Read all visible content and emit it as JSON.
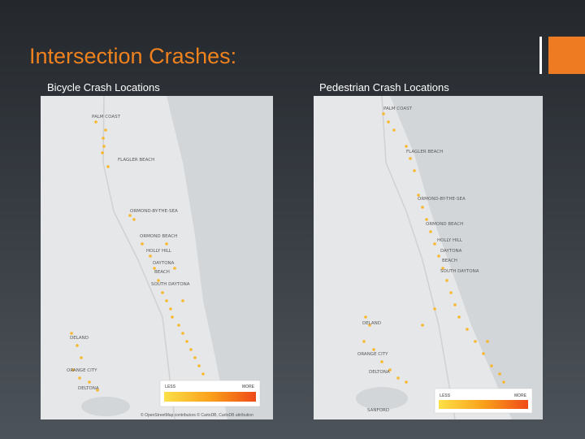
{
  "title": "Intersection Crashes:",
  "maps": [
    {
      "caption": "Bicycle Crash Locations",
      "places": [
        "PALM COAST",
        "FLAGLER BEACH",
        "ORMOND-BY-THE-SEA",
        "ORMOND BEACH",
        "HOLLY HILL",
        "DAYTONA",
        "BEACH",
        "SOUTH DAYTONA",
        "DELAND",
        "ORANGE CITY",
        "DELTONA"
      ],
      "legend": {
        "less": "LESS",
        "more": "MORE"
      },
      "attribution": "© OpenStreetMap contributors © CartoDB, CartoDB attribution"
    },
    {
      "caption": "Pedestrian Crash Locations",
      "places": [
        "PALM COAST",
        "FLAGLER BEACH",
        "ORMOND-BY-THE-SEA",
        "ORMOND BEACH",
        "HOLLY HILL",
        "DAYTONA",
        "BEACH",
        "SOUTH DAYTONA",
        "DELAND",
        "ORANGE CITY",
        "DELTONA",
        "SANFORD"
      ],
      "legend": {
        "less": "LESS",
        "more": "MORE"
      }
    }
  ]
}
